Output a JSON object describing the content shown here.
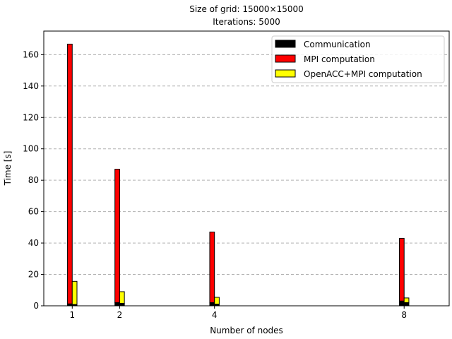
{
  "chart_data": {
    "type": "bar",
    "title_lines": [
      "Size of grid: 15000×15000",
      "Iterations: 5000"
    ],
    "xlabel": "Number of nodes",
    "ylabel": "Time [s]",
    "x": [
      1,
      2,
      4,
      8
    ],
    "x_ticks": [
      "1",
      "2",
      "4",
      "8"
    ],
    "xlim": [
      0.4,
      8.95
    ],
    "ylim": [
      0,
      175
    ],
    "y_ticks": [
      0,
      20,
      40,
      60,
      80,
      100,
      120,
      140,
      160
    ],
    "grid": "y-dashed",
    "legend_position": "top-right",
    "series": [
      {
        "name": "Communication",
        "color": "#000000",
        "values_mpi": [
          1.2,
          2.0,
          2.0,
          3.0
        ],
        "values_openacc": [
          0.8,
          1.5,
          1.0,
          2.0
        ]
      },
      {
        "name": "MPI computation",
        "color": "#ff0000",
        "values": [
          165.5,
          85.0,
          45.0,
          40.0
        ]
      },
      {
        "name": "OpenACC+MPI computation",
        "color": "#ffff00",
        "values": [
          14.8,
          7.5,
          4.4,
          3.0
        ]
      }
    ]
  }
}
